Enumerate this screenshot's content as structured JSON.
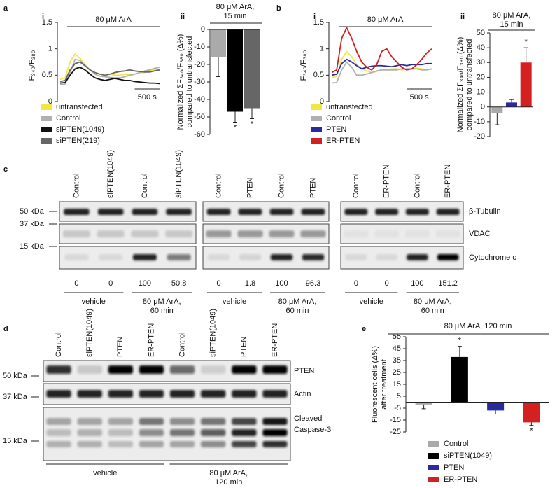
{
  "panel_labels": [
    "a",
    "i",
    "ii",
    "b",
    "i",
    "ii",
    "c",
    "d",
    "e"
  ],
  "chart_data": [
    {
      "type": "line",
      "title": "80 μM ArA",
      "ylabel": "F₃₄₀/F₃₈₀",
      "x": [
        0,
        100,
        200,
        300,
        400,
        500,
        600,
        700,
        800,
        900,
        1000,
        1100,
        1200,
        1300,
        1400,
        1500,
        1600,
        1700,
        1800,
        1900,
        2000
      ],
      "xlim": [
        0,
        2000
      ],
      "ylim": [
        0,
        1.5
      ],
      "yticks": [
        0,
        0.5,
        1,
        1.5
      ],
      "scale_bar": {
        "value": 500,
        "label": "500 s"
      },
      "series": [
        {
          "name": "untransfected",
          "color": "#f2e640",
          "values": [
            0.42,
            0.45,
            0.75,
            0.9,
            0.82,
            0.7,
            0.6,
            0.55,
            0.52,
            0.5,
            0.52,
            0.5,
            0.5,
            0.52,
            0.5,
            0.52,
            0.55,
            0.55,
            0.58,
            0.6,
            0.6
          ]
        },
        {
          "name": "Control",
          "color": "#b0b0b0",
          "values": [
            0.32,
            0.33,
            0.55,
            0.8,
            0.78,
            0.68,
            0.6,
            0.52,
            0.48,
            0.47,
            0.46,
            0.45,
            0.45,
            0.47,
            0.5,
            0.52,
            0.55,
            0.58,
            0.6,
            0.63,
            0.65
          ]
        },
        {
          "name": "siPTEN(1049)",
          "color": "#111111",
          "values": [
            0.35,
            0.36,
            0.5,
            0.62,
            0.65,
            0.6,
            0.52,
            0.45,
            0.42,
            0.4,
            0.42,
            0.44,
            0.42,
            0.4,
            0.4,
            0.38,
            0.37,
            0.36,
            0.35,
            0.35,
            0.34
          ]
        },
        {
          "name": "siPTEN(219)",
          "color": "#666666",
          "values": [
            0.38,
            0.4,
            0.6,
            0.72,
            0.75,
            0.68,
            0.6,
            0.55,
            0.52,
            0.5,
            0.52,
            0.55,
            0.57,
            0.58,
            0.6,
            0.58,
            0.57,
            0.56,
            0.56,
            0.58,
            0.6
          ]
        }
      ]
    },
    {
      "type": "bar",
      "title": [
        "80 μM ArA,",
        "15 min"
      ],
      "ylabel": [
        "Normalized ΣF₃₄₀/F₃₈₀ (Δ%)",
        "compared to untransfected"
      ],
      "categories": [
        null,
        null,
        null
      ],
      "values": [
        -16,
        -47,
        -45
      ],
      "errors": [
        11,
        6,
        6
      ],
      "colors": [
        "#aaaaaa",
        "#000000",
        "#666666"
      ],
      "significance": [
        null,
        "*",
        "*"
      ],
      "ylim": [
        -60,
        0
      ],
      "yticks": [
        -60,
        -50,
        -40,
        -30,
        -20,
        -10,
        0
      ]
    },
    {
      "type": "line",
      "title": "80 μM ArA",
      "ylabel": "F₃₄₀/F₃₈₀",
      "x": [
        0,
        100,
        200,
        300,
        400,
        500,
        600,
        700,
        800,
        900,
        1000,
        1100,
        1200,
        1300,
        1400,
        1500,
        1600,
        1700,
        1800,
        1900,
        2000
      ],
      "xlim": [
        0,
        2000
      ],
      "ylim": [
        0,
        1.5
      ],
      "yticks": [
        0,
        0.5,
        1,
        1.5
      ],
      "scale_bar": {
        "value": 500,
        "label": "500 s"
      },
      "series": [
        {
          "name": "untransfected",
          "color": "#f2e640",
          "values": [
            0.45,
            0.48,
            0.8,
            0.95,
            0.85,
            0.7,
            0.62,
            0.58,
            0.55,
            0.57,
            0.6,
            0.6,
            0.62,
            0.62,
            0.6,
            0.62,
            0.62,
            0.63,
            0.62,
            0.6,
            0.62
          ]
        },
        {
          "name": "Control",
          "color": "#b0b0b0",
          "values": [
            0.35,
            0.36,
            0.6,
            0.75,
            0.65,
            0.5,
            0.5,
            0.52,
            0.55,
            0.58,
            0.6,
            0.6,
            0.6,
            0.6,
            0.62,
            0.62,
            0.62,
            0.62,
            0.6,
            0.6,
            0.62
          ]
        },
        {
          "name": "PTEN",
          "color": "#2a2aa0",
          "values": [
            0.5,
            0.52,
            0.72,
            0.8,
            0.75,
            0.68,
            0.62,
            0.65,
            0.67,
            0.68,
            0.68,
            0.67,
            0.66,
            0.68,
            0.7,
            0.68,
            0.7,
            0.7,
            0.7,
            0.72,
            0.72
          ]
        },
        {
          "name": "ER-PTEN",
          "color": "#d42020",
          "values": [
            0.55,
            0.6,
            1.2,
            1.4,
            1.2,
            0.95,
            0.75,
            0.65,
            0.6,
            0.7,
            0.95,
            1.0,
            0.85,
            0.75,
            0.65,
            0.6,
            0.62,
            0.7,
            0.8,
            0.92,
            1.0
          ]
        }
      ]
    },
    {
      "type": "bar",
      "title": [
        "80 μM ArA,",
        "15 min"
      ],
      "ylabel": [
        "Normalized ΣF₃₄₀/F₃₈₀ (Δ%)",
        "compared to untransfected"
      ],
      "categories": [
        null,
        null,
        null
      ],
      "values": [
        -4,
        3,
        30
      ],
      "errors": [
        8,
        2,
        10
      ],
      "colors": [
        "#aaaaaa",
        "#2a2aa0",
        "#d42020"
      ],
      "significance": [
        null,
        null,
        "*"
      ],
      "ylim": [
        -20,
        50
      ],
      "yticks": [
        -20,
        -10,
        0,
        10,
        20,
        30,
        40,
        50
      ]
    },
    {
      "type": "bar",
      "title": "80 μM ArA, 120 min",
      "ylabel": [
        "Fluorescent cells (Δ%)",
        "after treatment"
      ],
      "categories": [
        "Control",
        "siPTEN(1049)",
        "PTEN",
        "ER-PTEN"
      ],
      "values": [
        -2,
        38,
        -7,
        -17
      ],
      "errors": [
        3.5,
        9,
        3,
        2.5
      ],
      "colors": [
        "#aaaaaa",
        "#000000",
        "#2a2aa0",
        "#d42020"
      ],
      "significance": [
        null,
        "*",
        null,
        "*"
      ],
      "ylim": [
        -25,
        55
      ],
      "yticks": [
        -25,
        -15,
        -5,
        5,
        15,
        25,
        35,
        45,
        55
      ]
    }
  ],
  "blots": {
    "c": {
      "markers": [
        "50 kDa",
        "37 kDa",
        "15 kDa"
      ],
      "rows": [
        "β-Tubulin",
        "VDAC",
        "Cytochrome c"
      ],
      "panels": [
        {
          "lanes": [
            "Control",
            "siPTEN(1049)",
            "Control",
            "siPTEN(1049)"
          ],
          "quantification": [
            0,
            0,
            100,
            50.8
          ],
          "groups": [
            "vehicle",
            [
              "80 μM ArA,",
              "60 min"
            ]
          ]
        },
        {
          "lanes": [
            "Control",
            "PTEN",
            "Control",
            "PTEN"
          ],
          "quantification": [
            0,
            1.8,
            100,
            96.3
          ],
          "groups": [
            "vehicle",
            [
              "80 μM ArA,",
              "60 min"
            ]
          ]
        },
        {
          "lanes": [
            "Control",
            "ER-PTEN",
            "Control",
            "ER-PTEN"
          ],
          "quantification": [
            0,
            0,
            100,
            151.2
          ],
          "groups": [
            "vehicle",
            [
              "80 μM ArA,",
              "60 min"
            ]
          ]
        }
      ]
    },
    "d": {
      "markers": [
        "50 kDa",
        "37 kDa",
        "15 kDa"
      ],
      "rows": [
        "PTEN",
        "Actin",
        [
          "Cleaved",
          "Caspase-3"
        ]
      ],
      "lanes": [
        "Control",
        "siPTEN(1049)",
        "PTEN",
        "ER-PTEN",
        "Control",
        "siPTEN(1049)",
        "PTEN",
        "ER-PTEN"
      ],
      "groups": [
        "vehicle",
        [
          "80 μM ArA,",
          "120 min"
        ]
      ]
    }
  }
}
